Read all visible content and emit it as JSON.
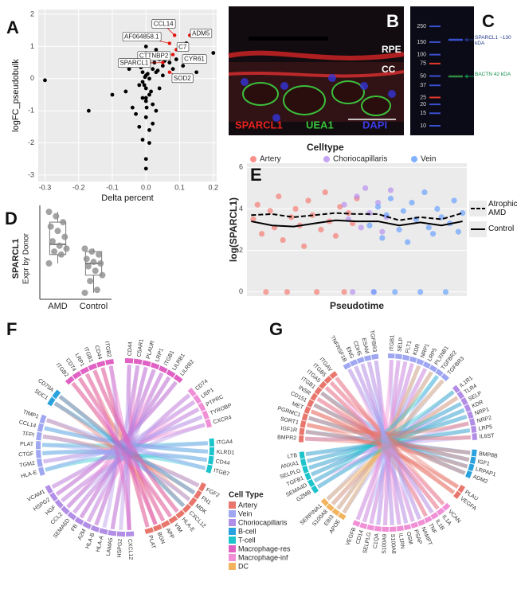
{
  "chart_data": [
    {
      "panel": "A",
      "type": "scatter",
      "xlabel": "Delta percent",
      "ylabel": "logFC_pseudobulk",
      "xlim": [
        -0.32,
        0.21
      ],
      "ylim": [
        -3.2,
        2.15
      ],
      "xticks": [
        -0.3,
        -0.2,
        -0.1,
        {
          "value": 0,
          "label": "0.0"
        },
        0.1,
        0.2
      ],
      "yticks": [
        -3,
        -2,
        -1,
        0,
        1,
        2
      ],
      "grid": true,
      "series": [
        {
          "color": "#000000",
          "x": [
            -0.3,
            -0.17,
            -0.1,
            -0.06,
            -0.05,
            -0.04,
            -0.03,
            -0.03,
            -0.02,
            -0.02,
            -0.02,
            -0.01,
            -0.01,
            -0.01,
            -0.01,
            0,
            0,
            0,
            0,
            0,
            0,
            0,
            0,
            0.01,
            0.01,
            0.01,
            0.01,
            0.01,
            0.02,
            0.02,
            0.02,
            0.02,
            0.03,
            0.03,
            0.03,
            0.04,
            0.04,
            0.05,
            0.05,
            0.06,
            0.07,
            0.08,
            0.09,
            0.1,
            0.11,
            0.12,
            0.15,
            0.2,
            -0.005,
            0.005,
            0.015,
            -0.015,
            0.025,
            0.035,
            0,
            0,
            0.002,
            -0.003,
            0.045,
            0.055
          ],
          "values": [
            -0.05,
            -1.0,
            -0.5,
            -0.4,
            0.3,
            -0.9,
            -1.1,
            0.4,
            -0.2,
            -1.5,
            0.6,
            -0.6,
            -1.9,
            0.2,
            -0.1,
            -2.5,
            -2.8,
            -1.2,
            -0.7,
            0.8,
            1.0,
            -0.3,
            0.1,
            -2.0,
            -1.6,
            0.5,
            -0.5,
            0.0,
            0.7,
            -1.4,
            0.3,
            -0.8,
            0.9,
            0.2,
            -1.0,
            0.6,
            -0.3,
            0.4,
            0.1,
            0.7,
            0.5,
            0.3,
            0.6,
            0.9,
            0.4,
            1.1,
            0.2,
            0.8,
            -0.2,
            0.15,
            -0.4,
            0.35,
            0.5,
            0.25,
            -0.6,
            0.45,
            -0.9,
            0.05,
            0.75,
            0.55
          ]
        },
        {
          "color": "#e3120b",
          "x": [
            0.085,
            0.13,
            0.07,
            0.08,
            0.09,
            0.05,
            0.12,
            0.07
          ],
          "values": [
            1.35,
            1.35,
            1.1,
            0.75,
            0.9,
            0.5,
            0.55,
            0.2
          ],
          "point_labels": [
            "CCL14",
            "ADM5",
            "AF064858.1",
            "CTTNBP2",
            "C7",
            "SPARCL1",
            "CYR61",
            "SOD2"
          ]
        }
      ]
    },
    {
      "panel": "D",
      "type": "box",
      "ylabel": "SPARCL1",
      "ylabel_sub": "Expr by Donor",
      "categories": [
        "AMD",
        "Control"
      ],
      "color": "#8c8c8c",
      "points": [
        [
          65,
          62,
          58,
          55,
          52,
          48,
          45,
          42,
          40,
          38,
          36,
          30
        ],
        [
          40,
          38,
          36,
          33,
          31,
          30,
          28,
          25,
          22,
          18,
          12,
          10
        ]
      ],
      "whisker_low": [
        30,
        10
      ],
      "q1": [
        36,
        22
      ],
      "median": [
        43,
        30
      ],
      "q3": [
        58,
        38
      ],
      "whisker_high": [
        65,
        40
      ]
    },
    {
      "panel": "E",
      "type": "scatter",
      "legend_title": "Celltype",
      "xlabel": "Pseudotime",
      "ylabel": "log(SPARCL1)",
      "xlim": [
        -2,
        102
      ],
      "ylim": [
        -0.2,
        6.2
      ],
      "yticks": [
        0,
        2,
        4,
        6
      ],
      "grid": true,
      "series": [
        {
          "name": "Artery",
          "color": "#f8766d",
          "x": [
            1,
            3,
            5,
            7,
            9,
            11,
            13,
            15,
            17,
            19,
            21,
            23,
            25,
            27,
            29,
            31,
            33,
            35,
            37,
            40,
            42,
            44,
            46,
            48,
            50
          ],
          "values": [
            3.5,
            4.2,
            2.8,
            0,
            3.9,
            3.1,
            4.6,
            2.5,
            0,
            3.6,
            4.0,
            3.2,
            2.2,
            4.4,
            3.7,
            0,
            3.0,
            4.8,
            3.4,
            2.7,
            4.1,
            0,
            3.8,
            3.3,
            4.5
          ]
        },
        {
          "name": "Choriocapillaris",
          "color": "#b58cf0",
          "x": [
            44,
            46,
            48,
            50,
            52,
            54,
            56,
            58,
            60,
            62,
            64,
            66
          ],
          "values": [
            4.2,
            3.5,
            0,
            4.6,
            3.1,
            5.0,
            3.8,
            0,
            4.3,
            2.9,
            3.6,
            4.9
          ]
        },
        {
          "name": "Vein",
          "color": "#619cff",
          "x": [
            56,
            58,
            60,
            62,
            64,
            66,
            68,
            70,
            72,
            74,
            76,
            78,
            80,
            82,
            84,
            86,
            88,
            90,
            92,
            94,
            96,
            98,
            100
          ],
          "values": [
            3.2,
            0,
            4.1,
            2.6,
            3.7,
            4.5,
            0,
            3.0,
            3.9,
            2.4,
            4.3,
            3.5,
            0,
            4.8,
            3.1,
            2.8,
            4.0,
            3.6,
            0,
            3.3,
            4.4,
            2.9,
            3.8
          ]
        }
      ],
      "lines": [
        {
          "name": "Atrophic AMD",
          "dashed": true,
          "x": [
            0,
            10,
            20,
            30,
            40,
            50,
            60,
            70,
            80,
            90,
            100
          ],
          "values": [
            3.7,
            3.75,
            3.6,
            3.7,
            3.8,
            3.75,
            3.75,
            3.45,
            3.6,
            3.5,
            3.8
          ]
        },
        {
          "name": "Control",
          "dashed": false,
          "x": [
            0,
            10,
            20,
            30,
            40,
            50,
            60,
            70,
            80,
            90,
            100
          ],
          "values": [
            3.4,
            3.2,
            3.15,
            3.3,
            3.45,
            3.4,
            3.4,
            3.2,
            3.35,
            3.2,
            3.4
          ]
        }
      ]
    },
    {
      "panel": "F",
      "type": "chord",
      "legend_title": "Cell Type",
      "legend": [
        {
          "name": "Artery",
          "color": "#e8766c"
        },
        {
          "name": "Vein",
          "color": "#9fa6f2"
        },
        {
          "name": "Choriocapillaris",
          "color": "#b28ee6"
        },
        {
          "name": "B-cell",
          "color": "#2aa2dd"
        },
        {
          "name": "T-cell",
          "color": "#1dc4cc"
        },
        {
          "name": "Macrophage-res",
          "color": "#e061c3"
        },
        {
          "name": "Macrophage-inf",
          "color": "#f08fd6"
        },
        {
          "name": "DC",
          "color": "#f2b45e"
        }
      ],
      "sectors": [
        {
          "color": "#e061c3",
          "labels": [
            "CD44",
            "C5AR1",
            "PLAUR",
            "LRP1",
            "ITGB1",
            "LILRB1",
            "LILRB2"
          ]
        },
        {
          "color": "#f08fd6",
          "labels": [
            "CD74",
            "LRP1",
            "PTPRC",
            "TYROBP",
            "CXCR4"
          ]
        },
        {
          "color": "#1dc4cc",
          "labels": [
            "ITGA4",
            "KLRD1",
            "CD44",
            "ITGB7"
          ]
        },
        {
          "color": "#e8766c",
          "labels": [
            "FGF2",
            "FN1",
            "MDK",
            "CXCL12",
            "HLA-E",
            "VIM",
            "APP",
            "BGN",
            "PLAT"
          ]
        },
        {
          "color": "#b28ee6",
          "labels": [
            "CXCL12",
            "HSPG2",
            "LAMA5",
            "HLA-A",
            "HLA-B",
            "A2M",
            "FB",
            "SEMA6D",
            "CCL2",
            "HGF",
            "HSPG2",
            "VCAM1"
          ]
        },
        {
          "color": "#9fa6f2",
          "labels": [
            "HLA-E",
            "TGM2",
            "CTGF",
            "PLAT",
            "TFPI",
            "CCL14",
            "TIMP1"
          ]
        },
        {
          "color": "#2aa2dd",
          "labels": [
            "SDC1",
            "CD79A"
          ]
        },
        {
          "color": "#e061c3",
          "labels": [
            "ITGB2",
            "CD74",
            "LRP1",
            "ITGB1",
            "CD44",
            "ITGB2"
          ]
        }
      ]
    },
    {
      "panel": "G",
      "type": "chord",
      "sectors": [
        {
          "color": "#9fa6f2",
          "labels": [
            "ITGB1",
            "SELP",
            "FLT1",
            "KDR",
            "NRP1",
            "LRP5",
            "PLXNB1",
            "TGFBR2",
            "TGFBR3"
          ]
        },
        {
          "color": "#b28ee6",
          "labels": [
            "IL1R1",
            "TLR4",
            "SELP",
            "KDR",
            "NRP1",
            "NRP2",
            "LRP5",
            "IL6ST"
          ]
        },
        {
          "color": "#2aa2dd",
          "labels": [
            "BMP8B",
            "IGF1",
            "LRPAP1",
            "ADM2"
          ]
        },
        {
          "color": "#e8766c",
          "labels": [
            "PLAU",
            "VEGFA"
          ]
        },
        {
          "color": "#f08fd6",
          "labels": [
            "VCAN",
            "IL1A",
            "IL1B",
            "TNF",
            "NAMPT",
            "PSAP",
            "OSM",
            "IL1RN",
            "S100A8",
            "S100A9",
            "C1QA",
            "SELPLG",
            "CD14",
            "VEGFB"
          ]
        },
        {
          "color": "#f2b45e",
          "labels": [
            "APOE",
            "EBI3",
            "S100A8",
            "SERPINA1"
          ]
        },
        {
          "color": "#1dc4cc",
          "labels": [
            "GZMB",
            "SEMA4D",
            "TGFB1",
            "SELPLG",
            "ANXA1",
            "LTB"
          ]
        },
        {
          "color": "#e8766c",
          "labels": [
            "BMPR2",
            "IGF1R",
            "SORT1",
            "PGRMC1",
            "MET",
            "CD151",
            "INSR",
            "ITGB1",
            "ITGA5",
            "ITGB5",
            "ITGAV"
          ]
        },
        {
          "color": "#9fa6f2",
          "labels": [
            "TNFRSF1B",
            "ENG",
            "CDH5",
            "ESAM",
            "TGFBR3"
          ]
        }
      ]
    }
  ],
  "panel_b": {
    "panel": "B",
    "layers": [
      "RPE",
      "CC"
    ],
    "stains": [
      {
        "text": "SPARCL1",
        "color": "#e8221e"
      },
      {
        "text": "UEA1",
        "color": "#38c23a"
      },
      {
        "text": "DAPI",
        "color": "#3b3be8"
      }
    ]
  },
  "panel_c": {
    "panel": "C",
    "ladder": [
      250,
      150,
      100,
      75,
      50,
      37,
      25,
      20,
      15,
      10
    ],
    "annotations": [
      {
        "text": "SPARCL1 ~130 kDA",
        "color": "#223a8c"
      },
      {
        "text": "BACTN 42 kDA",
        "color": "#12904a"
      }
    ]
  }
}
